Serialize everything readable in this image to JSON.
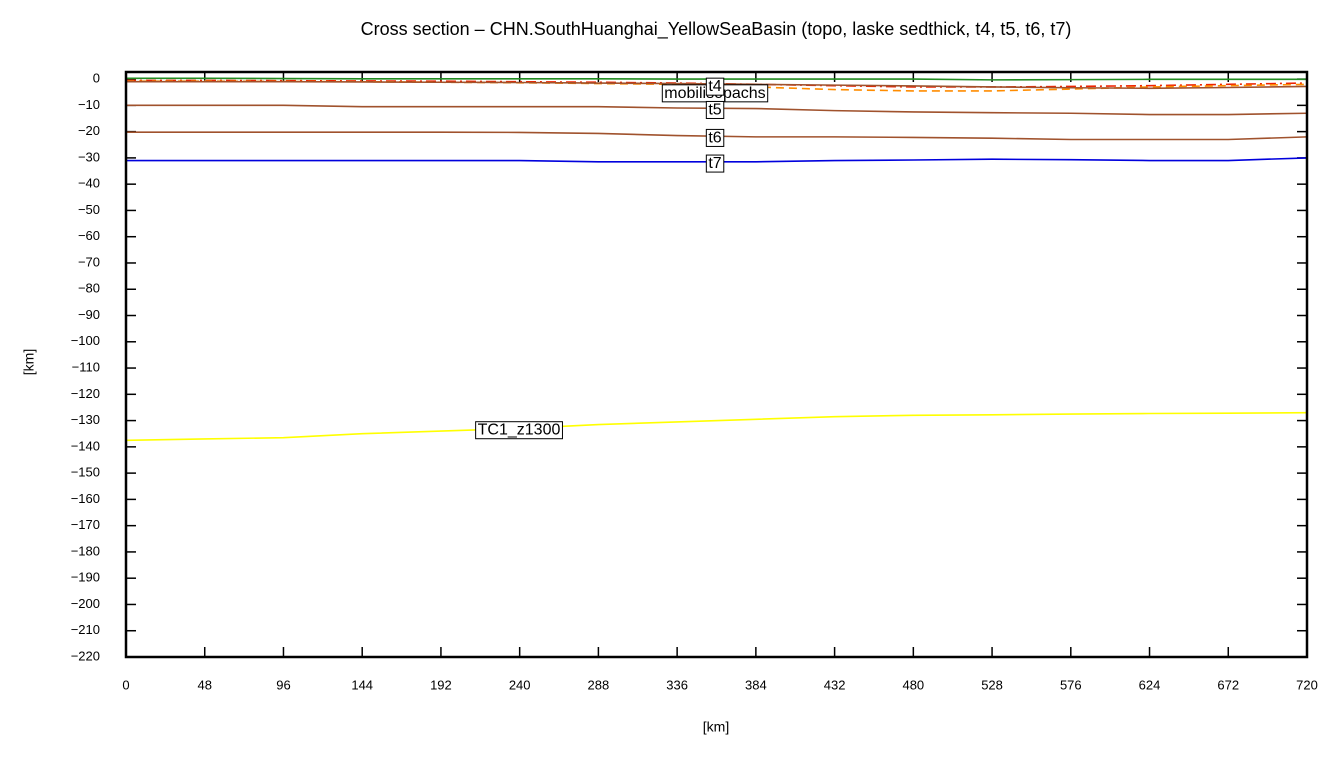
{
  "chart_data": {
    "type": "line",
    "title": "Cross section – CHN.SouthHuanghai_YellowSeaBasin (topo, laske sedthick, t4, t5, t6, t7)",
    "xlabel": "[km]",
    "ylabel": "[km]",
    "x": [
      0,
      48,
      96,
      144,
      192,
      240,
      288,
      336,
      384,
      432,
      480,
      528,
      576,
      624,
      672,
      720
    ],
    "xlim": [
      0,
      720
    ],
    "ylim": [
      -220,
      2.7
    ],
    "xticks": [
      0,
      48,
      96,
      144,
      192,
      240,
      288,
      336,
      384,
      432,
      480,
      528,
      576,
      624,
      672,
      720
    ],
    "yticks": [
      0,
      {
        "value": -10,
        "label": "−10"
      },
      {
        "value": -20,
        "label": "−20"
      },
      {
        "value": -30,
        "label": "−30"
      },
      {
        "value": -40,
        "label": "−40"
      },
      {
        "value": -50,
        "label": "−50"
      },
      {
        "value": -60,
        "label": "−60"
      },
      {
        "value": -70,
        "label": "−70"
      },
      {
        "value": -80,
        "label": "−80"
      },
      {
        "value": -90,
        "label": "−90"
      },
      {
        "value": -100,
        "label": "−100"
      },
      {
        "value": -110,
        "label": "−110"
      },
      {
        "value": -120,
        "label": "−120"
      },
      {
        "value": -130,
        "label": "−130"
      },
      {
        "value": -140,
        "label": "−140"
      },
      {
        "value": -150,
        "label": "−150"
      },
      {
        "value": -160,
        "label": "−160"
      },
      {
        "value": -170,
        "label": "−170"
      },
      {
        "value": -180,
        "label": "−180"
      },
      {
        "value": -190,
        "label": "−190"
      },
      {
        "value": -200,
        "label": "−200"
      },
      {
        "value": -210,
        "label": "−210"
      },
      {
        "value": -220,
        "label": "−220"
      }
    ],
    "series": [
      {
        "color": "#228b22",
        "dash": "solid",
        "values": [
          0.3,
          0.3,
          0.2,
          0.1,
          0.1,
          0.1,
          0.1,
          0,
          0,
          0,
          0,
          -0.3,
          -0.2,
          -0.1,
          -0.1,
          -0.1
        ]
      },
      {
        "color": "#ee2200",
        "dash": "dashdot",
        "values": [
          -0.5,
          -0.5,
          -0.6,
          -0.7,
          -0.8,
          -1,
          -1.2,
          -1.5,
          -2,
          -2.5,
          -3,
          -3,
          -2.8,
          -2.5,
          -2,
          -1.5
        ]
      },
      {
        "name": "mobilisopachs",
        "color": "#ff8c00",
        "dash": "dashed",
        "values": [
          -0.8,
          -0.8,
          -0.9,
          -1,
          -1.2,
          -1.4,
          -1.7,
          -2,
          -3,
          -4,
          -4.5,
          -4.5,
          -3.8,
          -3,
          -2.5,
          -2
        ]
      },
      {
        "name": "t4",
        "color": "#a0522d",
        "dash": "solid",
        "values": [
          -1,
          -1,
          -1,
          -1.1,
          -1.2,
          -1.3,
          -1.5,
          -1.7,
          -2,
          -2.3,
          -2.6,
          -3,
          -3.3,
          -3.5,
          -3.2,
          -2.8
        ]
      },
      {
        "name": "t5",
        "color": "#a0522d",
        "dash": "solid",
        "values": [
          -10,
          -10,
          -10,
          -10.5,
          -10.5,
          -10.5,
          -10.5,
          -11,
          -11.2,
          -12,
          -12.5,
          -12.8,
          -13,
          -13.5,
          -13.5,
          -13
        ]
      },
      {
        "name": "t6",
        "color": "#a0522d",
        "dash": "solid",
        "values": [
          -20.2,
          -20.2,
          -20.2,
          -20.2,
          -20.2,
          -20.3,
          -20.7,
          -21.5,
          -22,
          -22,
          -22.2,
          -22.5,
          -23,
          -23,
          -23,
          -22
        ]
      },
      {
        "name": "t7",
        "color": "#0000dd",
        "dash": "solid",
        "values": [
          -31,
          -31,
          -31,
          -31,
          -31,
          -31,
          -31.5,
          -31.5,
          -31.5,
          -31,
          -30.8,
          -30.5,
          -30.7,
          -31,
          -31,
          -30
        ]
      },
      {
        "name": "TC1_z1300",
        "color": "#ffff00",
        "dash": "solid",
        "values": [
          -137.5,
          -137,
          -136.5,
          -135,
          -134,
          -133,
          -131.5,
          -130.5,
          -129.5,
          -128.5,
          -128,
          -127.8,
          -127.5,
          -127.3,
          -127.2,
          -127
        ]
      }
    ]
  }
}
